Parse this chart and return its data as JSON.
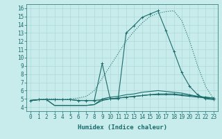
{
  "xlabel": "Humidex (Indice chaleur)",
  "bg_color": "#c8ecec",
  "line_color": "#1a6b6b",
  "grid_color": "#b0d8d8",
  "xlim": [
    -0.5,
    23.5
  ],
  "ylim": [
    3.5,
    16.5
  ],
  "xticks": [
    0,
    1,
    2,
    3,
    4,
    5,
    6,
    7,
    8,
    9,
    10,
    11,
    12,
    13,
    14,
    15,
    16,
    17,
    18,
    19,
    20,
    21,
    22,
    23
  ],
  "yticks": [
    4,
    5,
    6,
    7,
    8,
    9,
    10,
    11,
    12,
    13,
    14,
    15,
    16
  ],
  "lines": [
    {
      "x": [
        0,
        1,
        2,
        3,
        4,
        5,
        6,
        7,
        8,
        9,
        10,
        11,
        12,
        13,
        14,
        15,
        16,
        17,
        18,
        19,
        20,
        21,
        22,
        23
      ],
      "y": [
        4.8,
        4.9,
        5.0,
        5.0,
        4.9,
        5.0,
        5.1,
        5.3,
        6.0,
        7.5,
        9.0,
        10.5,
        12.0,
        13.2,
        14.2,
        15.0,
        15.4,
        15.6,
        15.7,
        14.5,
        12.0,
        9.0,
        6.5,
        5.0
      ],
      "marker": null,
      "linestyle": "dotted",
      "linewidth": 0.8
    },
    {
      "x": [
        0,
        1,
        2,
        3,
        4,
        5,
        6,
        7,
        8,
        9,
        10,
        11,
        12,
        13,
        14,
        15,
        16,
        17,
        18,
        19,
        20,
        21,
        22,
        23
      ],
      "y": [
        4.8,
        4.9,
        4.9,
        4.9,
        4.9,
        4.9,
        4.8,
        4.8,
        4.8,
        9.3,
        5.0,
        5.0,
        13.0,
        13.9,
        14.9,
        15.3,
        15.7,
        13.3,
        10.8,
        8.2,
        6.5,
        5.5,
        5.0,
        4.9
      ],
      "marker": "+",
      "linestyle": "solid",
      "linewidth": 0.8
    },
    {
      "x": [
        0,
        1,
        2,
        3,
        4,
        5,
        6,
        7,
        8,
        9,
        10,
        11,
        12,
        13,
        14,
        15,
        16,
        17,
        18,
        19,
        20,
        21,
        22,
        23
      ],
      "y": [
        4.8,
        4.9,
        4.9,
        4.2,
        4.2,
        4.2,
        4.2,
        4.2,
        4.3,
        4.8,
        5.0,
        5.1,
        5.2,
        5.3,
        5.4,
        5.5,
        5.5,
        5.5,
        5.5,
        5.4,
        5.3,
        5.2,
        5.1,
        5.0
      ],
      "marker": null,
      "linestyle": "solid",
      "linewidth": 0.8
    },
    {
      "x": [
        0,
        1,
        2,
        3,
        4,
        5,
        6,
        7,
        8,
        9,
        10,
        11,
        12,
        13,
        14,
        15,
        16,
        17,
        18,
        19,
        20,
        21,
        22,
        23
      ],
      "y": [
        4.8,
        4.9,
        4.9,
        4.9,
        4.9,
        4.9,
        4.8,
        4.8,
        4.8,
        4.9,
        5.0,
        5.1,
        5.2,
        5.3,
        5.4,
        5.5,
        5.6,
        5.6,
        5.6,
        5.5,
        5.4,
        5.3,
        5.2,
        5.1
      ],
      "marker": "+",
      "linestyle": "solid",
      "linewidth": 0.8
    },
    {
      "x": [
        0,
        1,
        2,
        3,
        4,
        5,
        6,
        7,
        8,
        9,
        10,
        11,
        12,
        13,
        14,
        15,
        16,
        17,
        18,
        19,
        20,
        21,
        22,
        23
      ],
      "y": [
        4.8,
        4.9,
        4.9,
        4.2,
        4.2,
        4.2,
        4.2,
        4.2,
        4.3,
        5.0,
        5.2,
        5.3,
        5.5,
        5.6,
        5.8,
        5.9,
        6.0,
        5.9,
        5.8,
        5.7,
        5.5,
        5.3,
        5.2,
        5.1
      ],
      "marker": null,
      "linestyle": "solid",
      "linewidth": 0.8
    }
  ],
  "font_family": "monospace",
  "tick_fontsize": 5.5,
  "label_fontsize": 6.5
}
